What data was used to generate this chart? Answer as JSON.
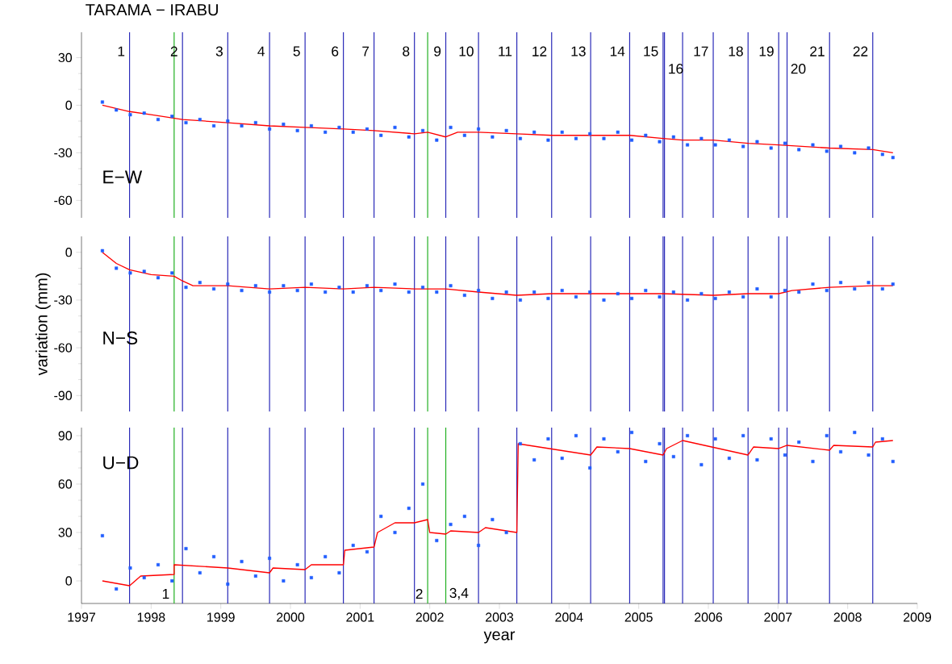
{
  "chart_data": [
    {
      "type": "scatter",
      "title": "TARAMA − IRABU",
      "xlim": [
        1997,
        2009
      ],
      "ylim": [
        -71,
        46
      ],
      "yticks": [
        -60,
        -30,
        0,
        30
      ],
      "tick_labels": "y",
      "annotations": [
        "E−W",
        {
          "text": "1",
          "x": 1997.69,
          "y": 34
        },
        {
          "text": "2",
          "x": 1998.45,
          "y": 34
        },
        {
          "text": "3",
          "x": 1999.1,
          "y": 34
        },
        {
          "text": "4",
          "x": 1999.7,
          "y": 34
        },
        {
          "text": "5",
          "x": 2000.21,
          "y": 34
        },
        {
          "text": "6",
          "x": 2000.76,
          "y": 34
        },
        {
          "text": "7",
          "x": 2001.2,
          "y": 34
        },
        {
          "text": "8",
          "x": 2001.78,
          "y": 34
        },
        {
          "text": "9",
          "x": 2002.23,
          "y": 34
        },
        {
          "text": "10",
          "x": 2002.7,
          "y": 34
        },
        {
          "text": "11",
          "x": 2003.25,
          "y": 34
        },
        {
          "text": "12",
          "x": 2003.75,
          "y": 34
        },
        {
          "text": "13",
          "x": 2004.31,
          "y": 34
        },
        {
          "text": "14",
          "x": 2004.87,
          "y": 34
        },
        {
          "text": "15",
          "x": 2005.35,
          "y": 34
        },
        {
          "text": "16",
          "x": 2005.37,
          "y": 23
        },
        {
          "text": "17",
          "x": 2006.07,
          "y": 34
        },
        {
          "text": "18",
          "x": 2006.57,
          "y": 34
        },
        {
          "text": "19",
          "x": 2007.01,
          "y": 34
        },
        {
          "text": "20",
          "x": 2007.13,
          "y": 23
        },
        {
          "text": "21",
          "x": 2007.74,
          "y": 34
        },
        {
          "text": "22",
          "x": 2008.36,
          "y": 34
        }
      ],
      "series": [
        {
          "type": "scatter",
          "marker": "square",
          "color": "#1f5cff",
          "x": [
            1997.3,
            1997.5,
            1997.7,
            1997.9,
            1998.1,
            1998.3,
            1998.5,
            1998.7,
            1998.9,
            1999.1,
            1999.3,
            1999.5,
            1999.7,
            1999.9,
            2000.1,
            2000.3,
            2000.5,
            2000.7,
            2000.9,
            2001.1,
            2001.3,
            2001.5,
            2001.7,
            2001.9,
            2002.1,
            2002.3,
            2002.5,
            2002.7,
            2002.9,
            2003.1,
            2003.3,
            2003.5,
            2003.7,
            2003.9,
            2004.1,
            2004.3,
            2004.5,
            2004.7,
            2004.9,
            2005.1,
            2005.3,
            2005.5,
            2005.7,
            2005.9,
            2006.1,
            2006.3,
            2006.5,
            2006.7,
            2006.9,
            2007.1,
            2007.3,
            2007.5,
            2007.7,
            2007.9,
            2008.1,
            2008.3,
            2008.5,
            2008.65
          ],
          "values": [
            2,
            -3,
            -6,
            -5,
            -9,
            -7,
            -11,
            -9,
            -13,
            -10,
            -13,
            -11,
            -15,
            -12,
            -16,
            -13,
            -17,
            -14,
            -17,
            -15,
            -19,
            -14,
            -20,
            -16,
            -22,
            -14,
            -19,
            -15,
            -20,
            -16,
            -21,
            -17,
            -22,
            -17,
            -21,
            -18,
            -21,
            -17,
            -22,
            -19,
            -23,
            -20,
            -25,
            -21,
            -25,
            -22,
            -26,
            -23,
            -27,
            -24,
            -28,
            -25,
            -29,
            -26,
            -30,
            -27,
            -31,
            -33
          ]
        },
        {
          "type": "line",
          "color": "#ff0000",
          "x": [
            1997.3,
            1997.69,
            1998.0,
            1998.45,
            1999.1,
            1999.7,
            2000.21,
            2000.76,
            2001.2,
            2001.78,
            2001.97,
            2002.23,
            2002.4,
            2002.7,
            2003.25,
            2003.75,
            2004.31,
            2004.87,
            2005.35,
            2005.63,
            2006.07,
            2006.57,
            2007.01,
            2007.74,
            2008.36,
            2008.65
          ],
          "values": [
            0,
            -4,
            -6,
            -9,
            -11,
            -13,
            -14,
            -15,
            -16,
            -18,
            -17,
            -20,
            -17,
            -17,
            -18,
            -19,
            -19,
            -19,
            -21,
            -22,
            -22,
            -24,
            -25,
            -27,
            -28,
            -30
          ]
        }
      ],
      "ref_lines": [
        {
          "axis": "x",
          "value": 1997.69,
          "color": "#2a2ab8"
        },
        {
          "axis": "x",
          "value": 1998.33,
          "color": "#22b022"
        },
        {
          "axis": "x",
          "value": 1998.45,
          "color": "#2a2ab8"
        },
        {
          "axis": "x",
          "value": 1999.1,
          "color": "#2a2ab8"
        },
        {
          "axis": "x",
          "value": 1999.7,
          "color": "#2a2ab8"
        },
        {
          "axis": "x",
          "value": 2000.21,
          "color": "#2a2ab8"
        },
        {
          "axis": "x",
          "value": 2000.76,
          "color": "#2a2ab8"
        },
        {
          "axis": "x",
          "value": 2001.2,
          "color": "#2a2ab8"
        },
        {
          "axis": "x",
          "value": 2001.78,
          "color": "#2a2ab8"
        },
        {
          "axis": "x",
          "value": 2001.97,
          "color": "#22b022"
        },
        {
          "axis": "x",
          "value": 2002.23,
          "color": "#2a2ab8"
        },
        {
          "axis": "x",
          "value": 2002.7,
          "color": "#2a2ab8"
        },
        {
          "axis": "x",
          "value": 2003.25,
          "color": "#2a2ab8"
        },
        {
          "axis": "x",
          "value": 2003.75,
          "color": "#2a2ab8"
        },
        {
          "axis": "x",
          "value": 2004.31,
          "color": "#2a2ab8"
        },
        {
          "axis": "x",
          "value": 2004.87,
          "color": "#2a2ab8"
        },
        {
          "axis": "x",
          "value": 2005.35,
          "color": "#2a2ab8"
        },
        {
          "axis": "x",
          "value": 2005.37,
          "color": "#2a2ab8"
        },
        {
          "axis": "x",
          "value": 2005.63,
          "color": "#2a2ab8"
        },
        {
          "axis": "x",
          "value": 2006.07,
          "color": "#2a2ab8"
        },
        {
          "axis": "x",
          "value": 2006.57,
          "color": "#2a2ab8"
        },
        {
          "axis": "x",
          "value": 2007.01,
          "color": "#2a2ab8"
        },
        {
          "axis": "x",
          "value": 2007.13,
          "color": "#2a2ab8"
        },
        {
          "axis": "x",
          "value": 2007.74,
          "color": "#2a2ab8"
        },
        {
          "axis": "x",
          "value": 2008.36,
          "color": "#2a2ab8"
        }
      ]
    },
    {
      "type": "scatter",
      "ylabel": "variation (mm)",
      "annotations": [
        "N−S"
      ],
      "xlim": [
        1997,
        2009
      ],
      "ylim": [
        -100,
        10
      ],
      "yticks": [
        -90,
        -60,
        -30,
        0
      ],
      "tick_labels": "y",
      "series": [
        {
          "type": "scatter",
          "marker": "square",
          "color": "#1f5cff",
          "x": [
            1997.3,
            1997.5,
            1997.7,
            1997.9,
            1998.1,
            1998.3,
            1998.5,
            1998.7,
            1998.9,
            1999.1,
            1999.3,
            1999.5,
            1999.7,
            1999.9,
            2000.1,
            2000.3,
            2000.5,
            2000.7,
            2000.9,
            2001.1,
            2001.3,
            2001.5,
            2001.7,
            2001.9,
            2002.1,
            2002.3,
            2002.5,
            2002.7,
            2002.9,
            2003.1,
            2003.3,
            2003.5,
            2003.7,
            2003.9,
            2004.1,
            2004.3,
            2004.5,
            2004.7,
            2004.9,
            2005.1,
            2005.3,
            2005.5,
            2005.7,
            2005.9,
            2006.1,
            2006.3,
            2006.5,
            2006.7,
            2006.9,
            2007.1,
            2007.3,
            2007.5,
            2007.7,
            2007.9,
            2008.1,
            2008.3,
            2008.5,
            2008.65
          ],
          "values": [
            1,
            -10,
            -13,
            -12,
            -16,
            -13,
            -22,
            -19,
            -23,
            -20,
            -24,
            -21,
            -25,
            -21,
            -24,
            -20,
            -25,
            -22,
            -25,
            -21,
            -24,
            -20,
            -25,
            -22,
            -25,
            -21,
            -27,
            -24,
            -29,
            -25,
            -30,
            -25,
            -29,
            -24,
            -28,
            -25,
            -30,
            -26,
            -29,
            -24,
            -28,
            -25,
            -30,
            -26,
            -29,
            -25,
            -28,
            -23,
            -28,
            -24,
            -25,
            -20,
            -24,
            -19,
            -23,
            -19,
            -23,
            -20
          ]
        },
        {
          "type": "line",
          "color": "#ff0000",
          "x": [
            1997.3,
            1997.5,
            1997.69,
            1998.0,
            1998.33,
            1998.45,
            1998.6,
            1999.1,
            1999.7,
            2000.21,
            2000.76,
            2001.2,
            2001.78,
            2002.23,
            2002.7,
            2003.25,
            2003.75,
            2004.31,
            2004.87,
            2005.35,
            2006.07,
            2006.57,
            2007.01,
            2007.2,
            2007.74,
            2008.36,
            2008.65
          ],
          "values": [
            0,
            -7,
            -11,
            -14,
            -15,
            -18,
            -21,
            -21,
            -23,
            -22,
            -23,
            -22,
            -23,
            -23,
            -25,
            -27,
            -26,
            -26,
            -26,
            -26,
            -27,
            -26,
            -26,
            -24,
            -22,
            -21,
            -21
          ]
        }
      ],
      "ref_lines": [
        {
          "axis": "x",
          "value": 1997.69,
          "color": "#2a2ab8"
        },
        {
          "axis": "x",
          "value": 1998.33,
          "color": "#22b022"
        },
        {
          "axis": "x",
          "value": 1998.45,
          "color": "#2a2ab8"
        },
        {
          "axis": "x",
          "value": 1999.1,
          "color": "#2a2ab8"
        },
        {
          "axis": "x",
          "value": 1999.7,
          "color": "#2a2ab8"
        },
        {
          "axis": "x",
          "value": 2000.21,
          "color": "#2a2ab8"
        },
        {
          "axis": "x",
          "value": 2000.76,
          "color": "#2a2ab8"
        },
        {
          "axis": "x",
          "value": 2001.2,
          "color": "#2a2ab8"
        },
        {
          "axis": "x",
          "value": 2001.78,
          "color": "#2a2ab8"
        },
        {
          "axis": "x",
          "value": 2001.97,
          "color": "#22b022"
        },
        {
          "axis": "x",
          "value": 2002.23,
          "color": "#2a2ab8"
        },
        {
          "axis": "x",
          "value": 2002.7,
          "color": "#2a2ab8"
        },
        {
          "axis": "x",
          "value": 2003.25,
          "color": "#2a2ab8"
        },
        {
          "axis": "x",
          "value": 2003.75,
          "color": "#2a2ab8"
        },
        {
          "axis": "x",
          "value": 2004.31,
          "color": "#2a2ab8"
        },
        {
          "axis": "x",
          "value": 2004.87,
          "color": "#2a2ab8"
        },
        {
          "axis": "x",
          "value": 2005.35,
          "color": "#2a2ab8"
        },
        {
          "axis": "x",
          "value": 2005.37,
          "color": "#2a2ab8"
        },
        {
          "axis": "x",
          "value": 2005.63,
          "color": "#2a2ab8"
        },
        {
          "axis": "x",
          "value": 2006.07,
          "color": "#2a2ab8"
        },
        {
          "axis": "x",
          "value": 2006.57,
          "color": "#2a2ab8"
        },
        {
          "axis": "x",
          "value": 2007.01,
          "color": "#2a2ab8"
        },
        {
          "axis": "x",
          "value": 2007.13,
          "color": "#2a2ab8"
        },
        {
          "axis": "x",
          "value": 2007.74,
          "color": "#2a2ab8"
        },
        {
          "axis": "x",
          "value": 2008.36,
          "color": "#2a2ab8"
        }
      ]
    },
    {
      "type": "scatter",
      "xlabel": "year",
      "xlim": [
        1997,
        2009
      ],
      "xticks": [
        1997,
        1998,
        1999,
        2000,
        2001,
        2002,
        2003,
        2004,
        2005,
        2006,
        2007,
        2008,
        2009
      ],
      "ylim": [
        -14,
        95
      ],
      "yticks": [
        0,
        30,
        60,
        90
      ],
      "annotations": [
        "U−D",
        {
          "text": "1",
          "x": 1998.33,
          "y": -8
        },
        {
          "text": "2",
          "x": 2001.97,
          "y": -8
        },
        {
          "text": "3,4",
          "x": 2002.23,
          "y": -8
        }
      ],
      "series": [
        {
          "type": "scatter",
          "marker": "square",
          "color": "#1f5cff",
          "x": [
            1997.3,
            1997.5,
            1997.7,
            1997.9,
            1998.1,
            1998.3,
            1998.5,
            1998.7,
            1998.9,
            1999.1,
            1999.3,
            1999.5,
            1999.7,
            1999.9,
            2000.1,
            2000.3,
            2000.5,
            2000.7,
            2000.9,
            2001.1,
            2001.3,
            2001.5,
            2001.7,
            2001.9,
            2002.1,
            2002.3,
            2002.5,
            2002.7,
            2002.9,
            2003.1,
            2003.3,
            2003.5,
            2003.7,
            2003.9,
            2004.1,
            2004.3,
            2004.5,
            2004.7,
            2004.9,
            2005.1,
            2005.3,
            2005.5,
            2005.7,
            2005.9,
            2006.1,
            2006.3,
            2006.5,
            2006.7,
            2006.9,
            2007.1,
            2007.3,
            2007.5,
            2007.7,
            2007.9,
            2008.1,
            2008.3,
            2008.5,
            2008.65
          ],
          "values": [
            28,
            -5,
            8,
            2,
            10,
            0,
            20,
            5,
            15,
            -2,
            12,
            3,
            14,
            0,
            10,
            2,
            15,
            5,
            22,
            18,
            40,
            30,
            45,
            60,
            25,
            35,
            40,
            22,
            38,
            30,
            85,
            75,
            88,
            76,
            90,
            70,
            88,
            80,
            92,
            74,
            85,
            77,
            90,
            72,
            88,
            76,
            90,
            75,
            88,
            78,
            86,
            74,
            90,
            80,
            92,
            78,
            88,
            74
          ]
        },
        {
          "type": "line",
          "color": "#ff0000",
          "x": [
            1997.3,
            1997.69,
            1997.85,
            1998.33,
            1998.33,
            1999.1,
            1999.7,
            1999.75,
            2000.21,
            2000.3,
            2000.76,
            2000.78,
            2001.2,
            2001.25,
            2001.5,
            2001.78,
            2001.97,
            2002.0,
            2002.23,
            2002.3,
            2002.7,
            2002.8,
            2003.25,
            2003.27,
            2004.31,
            2004.4,
            2004.87,
            2005.35,
            2005.4,
            2005.63,
            2006.57,
            2006.65,
            2007.01,
            2007.13,
            2007.74,
            2007.8,
            2008.36,
            2008.4,
            2008.65
          ],
          "values": [
            0,
            -3,
            3,
            4,
            10,
            8,
            5,
            8,
            7,
            10,
            10,
            19,
            21,
            30,
            36,
            36,
            38,
            30,
            29,
            31,
            30,
            33,
            30,
            85,
            78,
            83,
            82,
            78,
            82,
            87,
            78,
            83,
            82,
            84,
            81,
            84,
            83,
            86,
            87
          ]
        }
      ],
      "ref_lines": [
        {
          "axis": "x",
          "value": 1997.69,
          "color": "#2a2ab8"
        },
        {
          "axis": "x",
          "value": 1998.33,
          "color": "#22b022"
        },
        {
          "axis": "x",
          "value": 1998.45,
          "color": "#2a2ab8"
        },
        {
          "axis": "x",
          "value": 1999.1,
          "color": "#2a2ab8"
        },
        {
          "axis": "x",
          "value": 1999.7,
          "color": "#2a2ab8"
        },
        {
          "axis": "x",
          "value": 2000.21,
          "color": "#2a2ab8"
        },
        {
          "axis": "x",
          "value": 2000.76,
          "color": "#2a2ab8"
        },
        {
          "axis": "x",
          "value": 2001.2,
          "color": "#2a2ab8"
        },
        {
          "axis": "x",
          "value": 2001.78,
          "color": "#2a2ab8"
        },
        {
          "axis": "x",
          "value": 2001.97,
          "color": "#22b022"
        },
        {
          "axis": "x",
          "value": 2002.23,
          "color": "#22b022"
        },
        {
          "axis": "x",
          "value": 2002.7,
          "color": "#2a2ab8"
        },
        {
          "axis": "x",
          "value": 2003.25,
          "color": "#2a2ab8"
        },
        {
          "axis": "x",
          "value": 2003.75,
          "color": "#2a2ab8"
        },
        {
          "axis": "x",
          "value": 2004.31,
          "color": "#2a2ab8"
        },
        {
          "axis": "x",
          "value": 2004.87,
          "color": "#2a2ab8"
        },
        {
          "axis": "x",
          "value": 2005.35,
          "color": "#2a2ab8"
        },
        {
          "axis": "x",
          "value": 2005.37,
          "color": "#2a2ab8"
        },
        {
          "axis": "x",
          "value": 2005.63,
          "color": "#2a2ab8"
        },
        {
          "axis": "x",
          "value": 2006.07,
          "color": "#2a2ab8"
        },
        {
          "axis": "x",
          "value": 2006.57,
          "color": "#2a2ab8"
        },
        {
          "axis": "x",
          "value": 2007.01,
          "color": "#2a2ab8"
        },
        {
          "axis": "x",
          "value": 2007.13,
          "color": "#2a2ab8"
        },
        {
          "axis": "x",
          "value": 2007.74,
          "color": "#2a2ab8"
        },
        {
          "axis": "x",
          "value": 2008.36,
          "color": "#2a2ab8"
        }
      ]
    }
  ]
}
